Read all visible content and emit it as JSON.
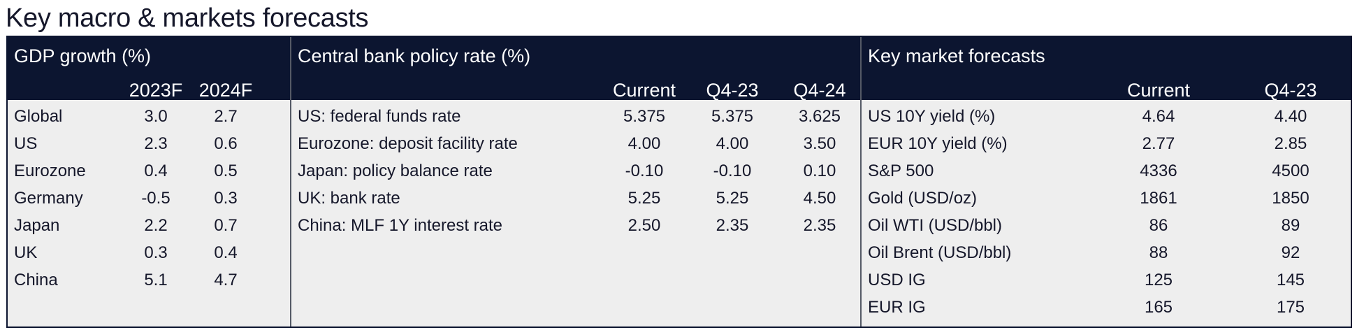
{
  "title": "Key macro & markets forecasts",
  "gdp": {
    "title": "GDP growth (%)",
    "columns": [
      "2023F",
      "2024F"
    ],
    "rows": [
      {
        "label": "Global",
        "values": [
          "3.0",
          "2.7"
        ]
      },
      {
        "label": "US",
        "values": [
          "2.3",
          "0.6"
        ]
      },
      {
        "label": "Eurozone",
        "values": [
          "0.4",
          "0.5"
        ]
      },
      {
        "label": "Germany",
        "values": [
          "-0.5",
          "0.3"
        ]
      },
      {
        "label": "Japan",
        "values": [
          "2.2",
          "0.7"
        ]
      },
      {
        "label": "UK",
        "values": [
          "0.3",
          "0.4"
        ]
      },
      {
        "label": "China",
        "values": [
          "5.1",
          "4.7"
        ]
      }
    ]
  },
  "policy": {
    "title": "Central bank policy rate (%)",
    "columns": [
      "Current",
      "Q4-23",
      "Q4-24"
    ],
    "rows": [
      {
        "label": "US: federal funds rate",
        "values": [
          "5.375",
          "5.375",
          "3.625"
        ]
      },
      {
        "label": "Eurozone: deposit facility rate",
        "values": [
          "4.00",
          "4.00",
          "3.50"
        ]
      },
      {
        "label": "Japan: policy balance rate",
        "values": [
          "-0.10",
          "-0.10",
          "0.10"
        ]
      },
      {
        "label": "UK: bank rate",
        "values": [
          "5.25",
          "5.25",
          "4.50"
        ]
      },
      {
        "label": "China: MLF 1Y interest rate",
        "values": [
          "2.50",
          "2.35",
          "2.35"
        ]
      }
    ]
  },
  "markets": {
    "title": "Key market forecasts",
    "columns": [
      "Current",
      "Q4-23"
    ],
    "rows": [
      {
        "label": "US 10Y yield (%)",
        "values": [
          "4.64",
          "4.40"
        ]
      },
      {
        "label": "EUR 10Y yield (%)",
        "values": [
          "2.77",
          "2.85"
        ]
      },
      {
        "label": "S&P 500",
        "values": [
          "4336",
          "4500"
        ]
      },
      {
        "label": "Gold (USD/oz)",
        "values": [
          "1861",
          "1850"
        ]
      },
      {
        "label": "Oil WTI (USD/bbl)",
        "values": [
          "86",
          "89"
        ]
      },
      {
        "label": "Oil Brent (USD/bbl)",
        "values": [
          "88",
          "92"
        ]
      },
      {
        "label": "USD IG",
        "values": [
          "125",
          "145"
        ]
      },
      {
        "label": "EUR IG",
        "values": [
          "165",
          "175"
        ]
      }
    ]
  }
}
